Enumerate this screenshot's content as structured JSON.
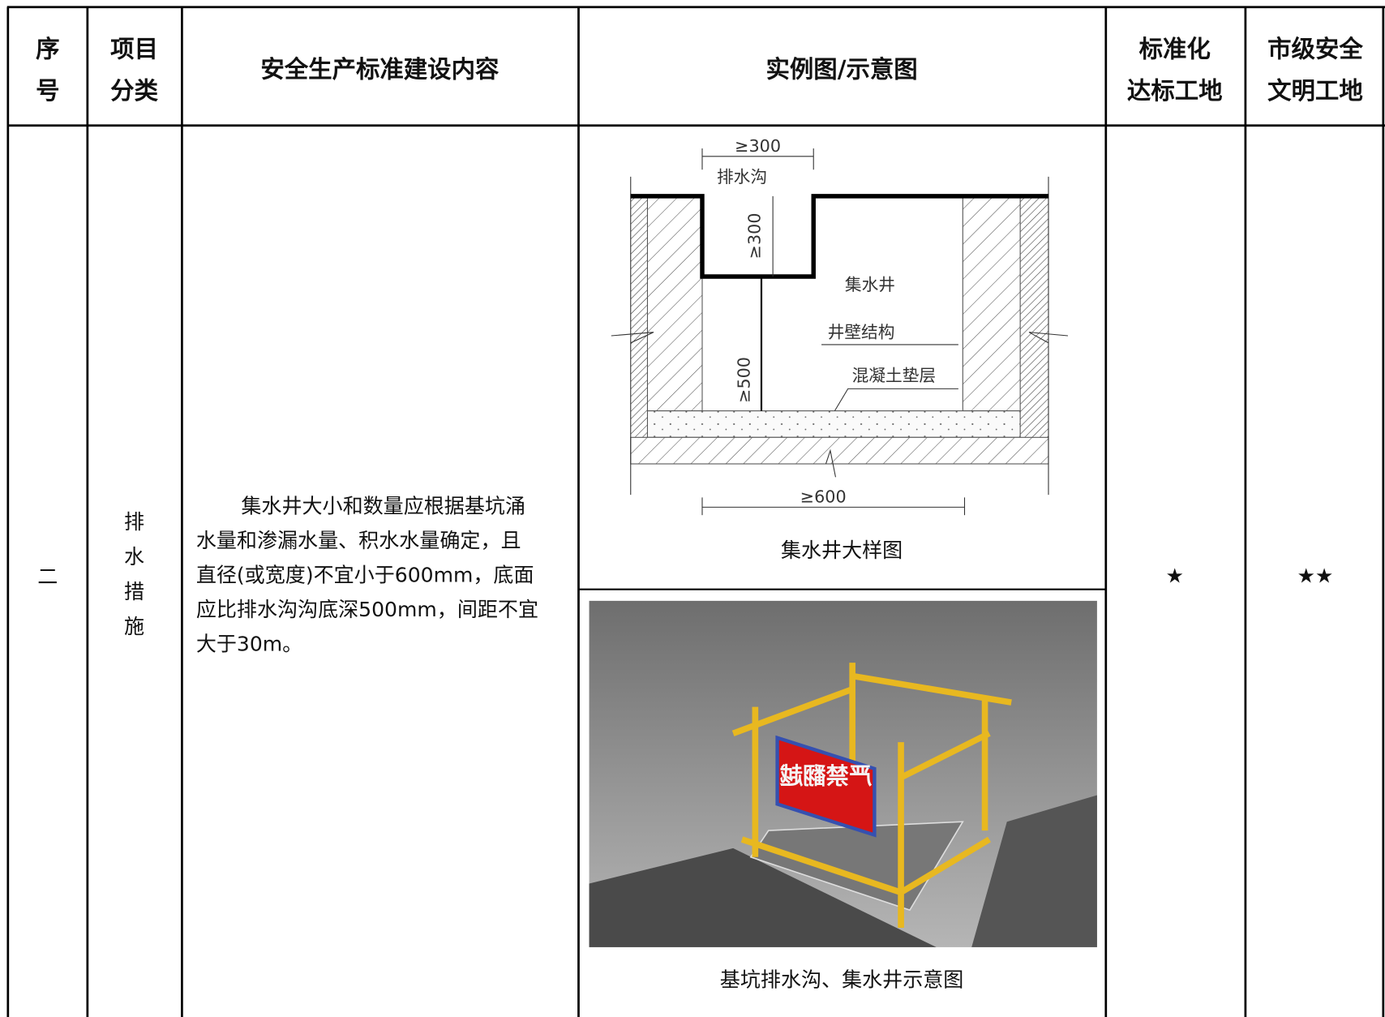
{
  "table": {
    "header": [
      [
        "序",
        "号"
      ],
      [
        "项目",
        "分类"
      ],
      [
        "安全生产标准建设内容"
      ],
      [
        "实例图/示意图"
      ],
      [
        "标准化",
        "达标工地"
      ],
      [
        "市级安全",
        "文明工地"
      ]
    ],
    "rows": [
      {
        "index": "二",
        "category": "排水措施",
        "content": [
          "集水井大小和数量应根据基坑涌",
          "水量和渗漏水量、积水水量确定，且",
          "直径(或宽度)不宜小于600mm，底面",
          "应比排水沟沟底深500mm，间距不宜",
          "大于30m。"
        ],
        "diagram": {
          "labels": [
            "≥300",
            "排水沟",
            "≥300",
            "集水井",
            "井壁结构",
            "混凝土垫层",
            "≥500",
            "≥600"
          ],
          "caption": "集水井大样图"
        },
        "photo": {
          "sign": "严禁翻越",
          "caption": "基坑排水沟、集水井示意图"
        },
        "standard": "★",
        "civilized": "★★"
      }
    ]
  }
}
